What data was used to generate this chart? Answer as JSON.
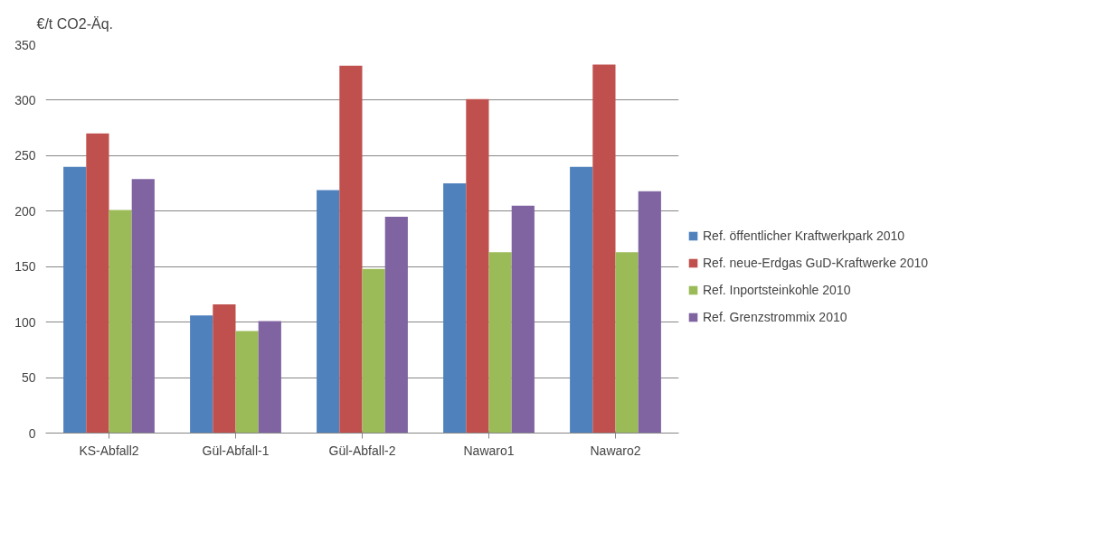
{
  "chart_data": {
    "type": "bar",
    "ylabel": "€/t CO2-Äq.",
    "categories": [
      "KS-Abfall2",
      "Gül-Abfall-1",
      "Gül-Abfall-2",
      "Nawaro1",
      "Nawaro2"
    ],
    "series": [
      {
        "name": "Ref. öffentlicher Kraftwerkpark 2010",
        "color": "#4f81bd",
        "values": [
          240,
          106,
          219,
          225,
          240
        ]
      },
      {
        "name": "Ref. neue-Erdgas GuD-Kraftwerke 2010",
        "color": "#c0504d",
        "values": [
          270,
          116,
          331,
          301,
          332
        ]
      },
      {
        "name": "Ref. Inportsteinkohle 2010",
        "color": "#9bbb59",
        "values": [
          201,
          92,
          148,
          163,
          163
        ]
      },
      {
        "name": "Ref. Grenzstrommix 2010",
        "color": "#8064a2",
        "values": [
          229,
          101,
          195,
          205,
          218
        ]
      }
    ],
    "ylim": [
      0,
      350
    ],
    "yticks": [
      0,
      50,
      100,
      150,
      200,
      250,
      300,
      350
    ],
    "grid": "y",
    "legend": "right"
  }
}
